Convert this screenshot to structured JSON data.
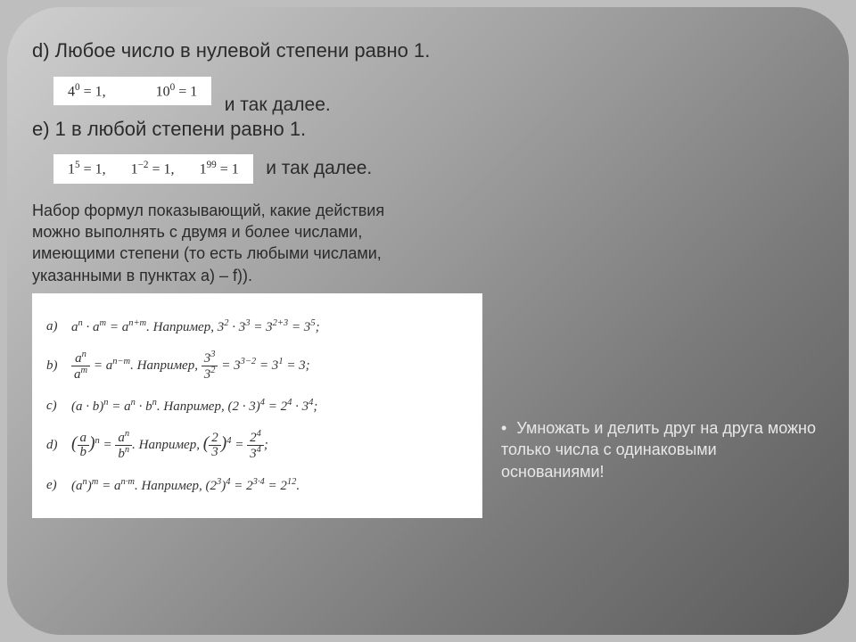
{
  "section_d": {
    "title": "d) Любое число в нулевой степени равно 1.",
    "formula_html": "4<sup>0</sup> = 1,<span class='sp'></span><span class='sp'></span>10<sup>0</sup> = 1",
    "tail": "и так далее."
  },
  "section_e": {
    "title": "e) 1 в любой степени равно 1.",
    "formula_html": "1<sup>5</sup> = 1,<span class='sp'></span>1<sup>−2</sup> = 1,<span class='sp'></span>1<sup>99</sup> = 1",
    "tail": "и так далее."
  },
  "paragraph": "Набор формул показывающий, какие действия можно выполнять с двумя и более числами, имеющими степени (то есть любыми числами, указанными в пунктах a) – f)).",
  "rules": [
    {
      "label": "a)",
      "expr_html": "a<sup>n</sup> · a<sup>m</sup> = a<sup>n+m</sup>. <i>Например</i>, 3<sup>2</sup> · 3<sup>3</sup> = 3<sup>2+3</sup> = 3<sup>5</sup>;"
    },
    {
      "label": "b)",
      "expr_html": "<span class='frac'><span class='num'>a<sup>n</sup></span><span class='den'>a<sup>m</sup></span></span> = a<sup>n−m</sup>. <i>Например</i>, <span class='frac'><span class='num'>3<sup>3</sup></span><span class='den'>3<sup>2</sup></span></span> = 3<sup>3−2</sup> = 3<sup>1</sup> = 3;"
    },
    {
      "label": "c)",
      "expr_html": "(a · b)<sup>n</sup> = a<sup>n</sup> · b<sup>n</sup>. <i>Например</i>, (2 · 3)<sup>4</sup> = 2<sup>4</sup> · 3<sup>4</sup>;"
    },
    {
      "label": "d)",
      "expr_html": "<span style='font-size:1.3em'>(</span><span class='frac'><span class='num'>a</span><span class='den'>b</span></span><span style='font-size:1.3em'>)</span><sup>n</sup> = <span class='frac'><span class='num'>a<sup>n</sup></span><span class='den'>b<sup>n</sup></span></span>. <i>Например</i>, <span style='font-size:1.3em'>(</span><span class='frac'><span class='num'>2</span><span class='den'>3</span></span><span style='font-size:1.3em'>)</span><sup>4</sup> = <span class='frac'><span class='num'>2<sup>4</sup></span><span class='den'>3<sup>4</sup></span></span>;"
    },
    {
      "label": "e)",
      "expr_html": "(a<sup>n</sup>)<sup>m</sup> = a<sup>n·m</sup>. <i>Например</i>, (2<sup>3</sup>)<sup>4</sup> = 2<sup>3·4</sup> = 2<sup>12</sup>."
    }
  ],
  "sidenote": "Умножать и делить друг на друга можно только числа с одинаковыми основаниями!",
  "colors": {
    "page_bg": "#bebebe",
    "text_dark": "#2b2b2b",
    "text_light": "#e8e8e8",
    "box_bg": "#ffffff"
  }
}
